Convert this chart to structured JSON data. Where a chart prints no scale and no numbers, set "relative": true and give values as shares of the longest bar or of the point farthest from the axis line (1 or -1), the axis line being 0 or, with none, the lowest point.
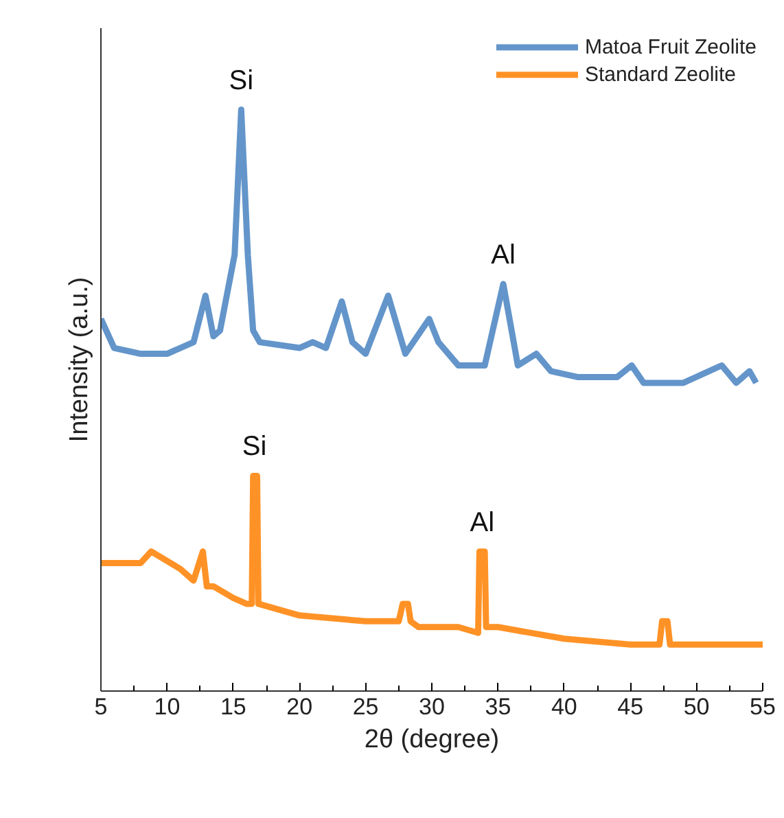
{
  "chart_data": {
    "type": "line",
    "relative": true,
    "xlabel": "2θ (degree)",
    "ylabel": "Intensity (a.u.)",
    "xlim": [
      5,
      55
    ],
    "xticks": [
      5,
      10,
      15,
      20,
      25,
      30,
      35,
      40,
      45,
      50,
      55
    ],
    "legend": "top right",
    "grid": false,
    "marker": "none",
    "line_style": "solid",
    "series": [
      {
        "name": "Matoa Fruit Zeolite",
        "color": "#5b8fc7",
        "x": [
          5,
          6,
          8,
          10,
          11,
          12,
          12.9,
          13.5,
          14,
          15.1,
          15.6,
          16.1,
          16.5,
          17,
          20,
          21,
          22,
          23.2,
          24,
          25,
          26.7,
          28,
          29.8,
          30.5,
          32,
          34,
          35.4,
          36.5,
          37.9,
          39,
          41,
          43,
          44,
          45.1,
          46,
          49,
          51.9,
          53,
          54,
          54.5
        ],
        "values": [
          0.64,
          0.59,
          0.58,
          0.58,
          0.59,
          0.6,
          0.68,
          0.61,
          0.62,
          0.75,
          1.0,
          0.75,
          0.62,
          0.6,
          0.59,
          0.6,
          0.59,
          0.67,
          0.6,
          0.58,
          0.68,
          0.58,
          0.64,
          0.6,
          0.56,
          0.56,
          0.7,
          0.56,
          0.58,
          0.55,
          0.54,
          0.54,
          0.54,
          0.56,
          0.53,
          0.53,
          0.56,
          0.53,
          0.55,
          0.53
        ]
      },
      {
        "name": "Standard Zeolite",
        "color": "#ff8c1a",
        "x": [
          5,
          8,
          8.8,
          11,
          12,
          12.7,
          13.0,
          13.5,
          15,
          16,
          16.4,
          16.5,
          16.8,
          16.9,
          20,
          25,
          27.5,
          27.8,
          28.2,
          28.4,
          29,
          32,
          33.5,
          33.6,
          34.0,
          34.1,
          35,
          40,
          45,
          47.2,
          47.4,
          47.8,
          48.0,
          52,
          55
        ],
        "values": [
          0.22,
          0.22,
          0.24,
          0.21,
          0.19,
          0.24,
          0.18,
          0.18,
          0.16,
          0.15,
          0.15,
          0.37,
          0.37,
          0.15,
          0.13,
          0.12,
          0.12,
          0.15,
          0.15,
          0.12,
          0.11,
          0.11,
          0.1,
          0.24,
          0.24,
          0.11,
          0.11,
          0.09,
          0.08,
          0.08,
          0.12,
          0.12,
          0.08,
          0.08,
          0.08
        ]
      }
    ],
    "annotations": [
      {
        "text": "Si",
        "x": 15.6,
        "y": 1.0
      },
      {
        "text": "Al",
        "x": 35.4,
        "y": 0.7
      },
      {
        "text": "Si",
        "x": 16.6,
        "y": 0.37
      },
      {
        "text": "Al",
        "x": 33.8,
        "y": 0.24
      }
    ]
  }
}
